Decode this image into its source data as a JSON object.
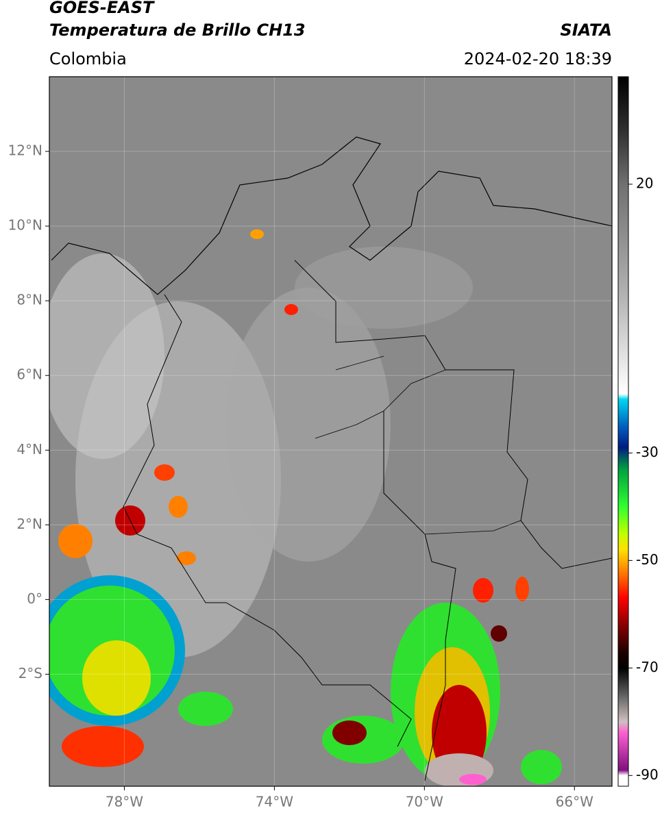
{
  "header": {
    "satellite": "GOES-EAST",
    "product": "Temperatura de Brillo CH13",
    "source": "SIATA",
    "region": "Colombia",
    "datetime": "2024-02-20 18:39"
  },
  "map": {
    "lon_lim": [
      -80,
      -65
    ],
    "lat_lim": [
      -5,
      14
    ],
    "grid": true,
    "background": "#8a8a8a",
    "lon_ticks": [
      {
        "value": -78,
        "label": "78°W"
      },
      {
        "value": -74,
        "label": "74°W"
      },
      {
        "value": -70,
        "label": "70°W"
      },
      {
        "value": -66,
        "label": "66°W"
      }
    ],
    "lat_ticks": [
      {
        "value": 12,
        "label": "12°N"
      },
      {
        "value": 10,
        "label": "10°N"
      },
      {
        "value": 8,
        "label": "8°N"
      },
      {
        "value": 6,
        "label": "6°N"
      },
      {
        "value": 4,
        "label": "4°N"
      },
      {
        "value": 2,
        "label": "2°N"
      },
      {
        "value": 0,
        "label": "0°"
      },
      {
        "value": -2,
        "label": "2°S"
      }
    ]
  },
  "colorbar": {
    "lim": [
      -92,
      40
    ],
    "ticks": [
      20,
      -30,
      -50,
      -70,
      -90
    ],
    "stops": [
      {
        "value": 40,
        "color": "#000000"
      },
      {
        "value": 30,
        "color": "#303030"
      },
      {
        "value": 20,
        "color": "#707070"
      },
      {
        "value": 0,
        "color": "#b0b0b0"
      },
      {
        "value": -19,
        "color": "#ffffff"
      },
      {
        "value": -20,
        "color": "#00d8f0"
      },
      {
        "value": -25,
        "color": "#0060c0"
      },
      {
        "value": -29,
        "color": "#001a80"
      },
      {
        "value": -31,
        "color": "#006060"
      },
      {
        "value": -33,
        "color": "#00a040"
      },
      {
        "value": -40,
        "color": "#30ff30"
      },
      {
        "value": -45,
        "color": "#c0ff00"
      },
      {
        "value": -48,
        "color": "#ffe000"
      },
      {
        "value": -52,
        "color": "#ff8000"
      },
      {
        "value": -57,
        "color": "#ff0000"
      },
      {
        "value": -62,
        "color": "#8a0000"
      },
      {
        "value": -67,
        "color": "#200000"
      },
      {
        "value": -70,
        "color": "#000000"
      },
      {
        "value": -75,
        "color": "#606060"
      },
      {
        "value": -80,
        "color": "#d0c0c0"
      },
      {
        "value": -82,
        "color": "#ff60d0"
      },
      {
        "value": -89,
        "color": "#801080"
      },
      {
        "value": -90,
        "color": "#ffffff"
      },
      {
        "value": -92,
        "color": "#ffffff"
      }
    ]
  }
}
